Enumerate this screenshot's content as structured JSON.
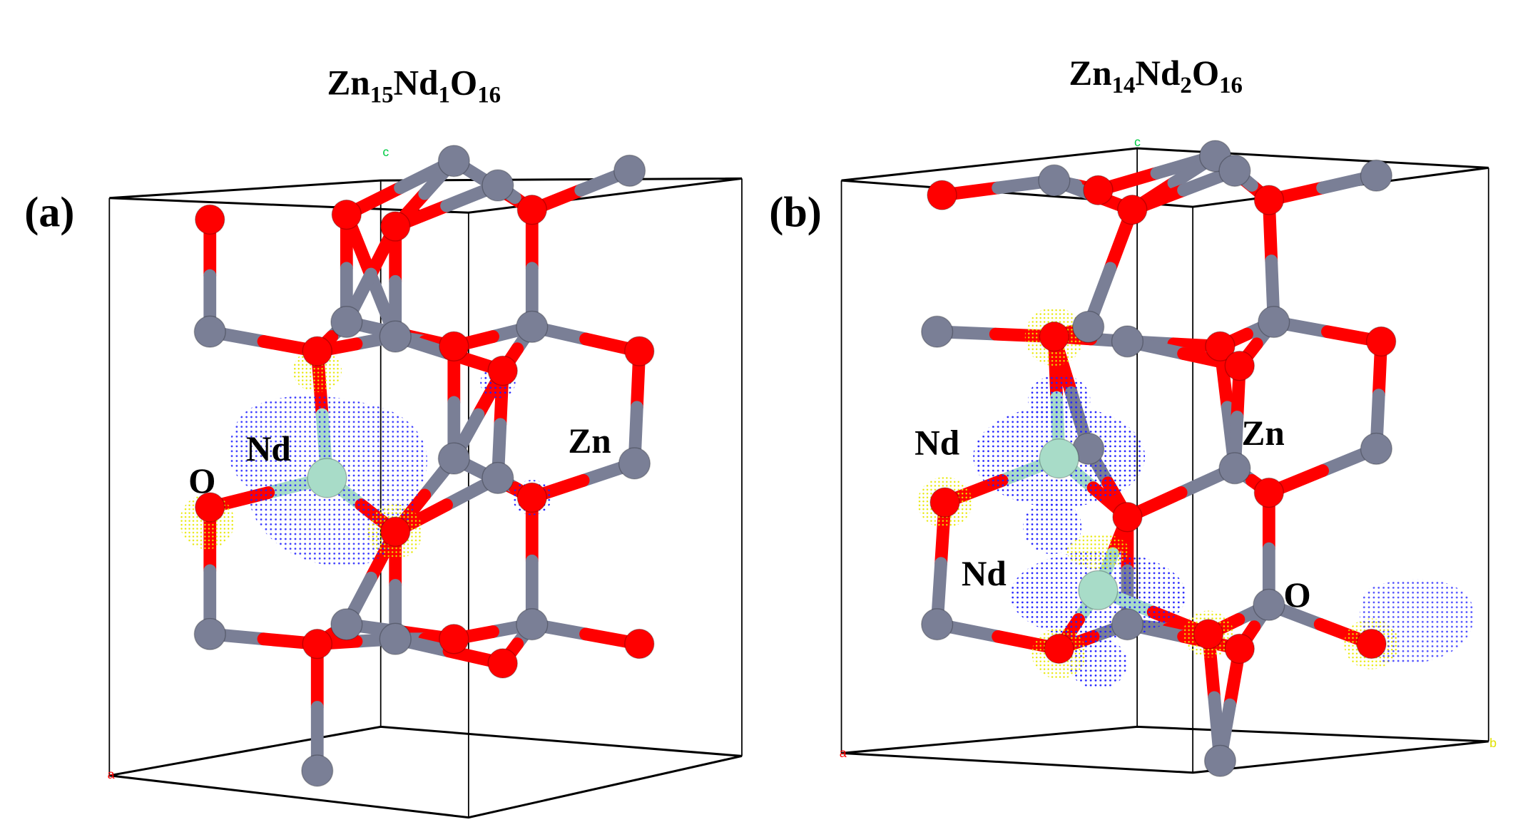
{
  "figure": {
    "panel_a": {
      "tag": "(a)",
      "title": {
        "el1": "Zn",
        "n1": "15",
        "el2": "Nd",
        "n2": "1",
        "el3": "O",
        "n3": "16"
      },
      "labels": {
        "nd": "Nd",
        "o": "O",
        "zn": "Zn"
      },
      "axes": {
        "a": "a",
        "c": "c"
      }
    },
    "panel_b": {
      "tag": "(b)",
      "title": {
        "el1": "Zn",
        "n1": "14",
        "el2": "Nd",
        "n2": "2",
        "el3": "O",
        "n3": "16"
      },
      "labels": {
        "nd1": "Nd",
        "nd2": "Nd",
        "zn": "Zn",
        "o": "O"
      },
      "axes": {
        "a": "a",
        "b": "b",
        "c": "c"
      }
    },
    "colors": {
      "zn": "#7a7f96",
      "o": "#ff0000",
      "nd": "#a8dcc8",
      "isosurface_blue": "#2020ff",
      "isosurface_yellow": "#f0f000",
      "axis_a": "#ff0000",
      "axis_b": "#e0e000",
      "axis_c": "#00cc44"
    }
  }
}
